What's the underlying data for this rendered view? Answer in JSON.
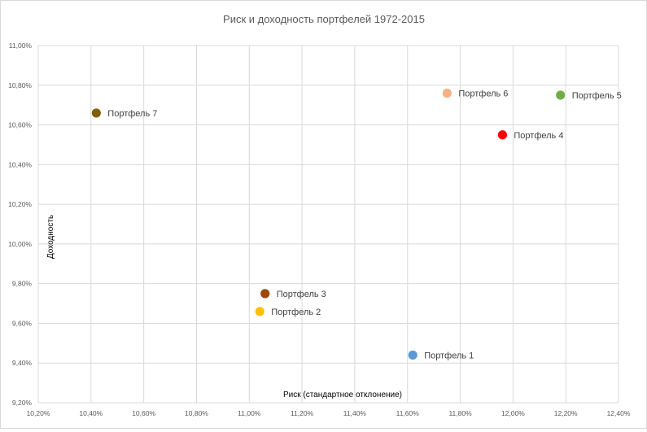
{
  "chart_data": {
    "type": "scatter",
    "title": "Риск и доходность портфелей 1972-2015",
    "xlabel": "Риск (стандартное отклонение)",
    "ylabel": "Доходность",
    "xlim": [
      0.102,
      0.124
    ],
    "ylim": [
      0.092,
      0.11
    ],
    "x_ticks": [
      0.102,
      0.104,
      0.106,
      0.108,
      0.11,
      0.112,
      0.114,
      0.116,
      0.118,
      0.12,
      0.122,
      0.124
    ],
    "x_tick_labels": [
      "10,20%",
      "10,40%",
      "10,60%",
      "10,80%",
      "11,00%",
      "11,20%",
      "11,40%",
      "11,60%",
      "11,80%",
      "12,00%",
      "12,20%",
      "12,40%"
    ],
    "y_ticks": [
      0.092,
      0.094,
      0.096,
      0.098,
      0.1,
      0.102,
      0.104,
      0.106,
      0.108,
      0.11
    ],
    "y_tick_labels": [
      "9,20%",
      "9,40%",
      "9,60%",
      "9,80%",
      "10,00%",
      "10,20%",
      "10,40%",
      "10,60%",
      "10,80%",
      "11,00%"
    ],
    "grid": true,
    "legend": "none",
    "series": [
      {
        "name": "Портфель 1",
        "x": 0.1162,
        "y": 0.0944,
        "color": "#5b9bd5"
      },
      {
        "name": "Портфель 2",
        "x": 0.1104,
        "y": 0.0966,
        "color": "#ffc000"
      },
      {
        "name": "Портфель 3",
        "x": 0.1106,
        "y": 0.0975,
        "color": "#9e480e"
      },
      {
        "name": "Портфель 4",
        "x": 0.1196,
        "y": 0.1055,
        "color": "#ff0000"
      },
      {
        "name": "Портфель 5",
        "x": 0.1218,
        "y": 0.1075,
        "color": "#70ad47"
      },
      {
        "name": "Портфель 6",
        "x": 0.1175,
        "y": 0.1076,
        "color": "#f4b183"
      },
      {
        "name": "Портфель 7",
        "x": 0.1042,
        "y": 0.1066,
        "color": "#7f6000"
      }
    ]
  }
}
